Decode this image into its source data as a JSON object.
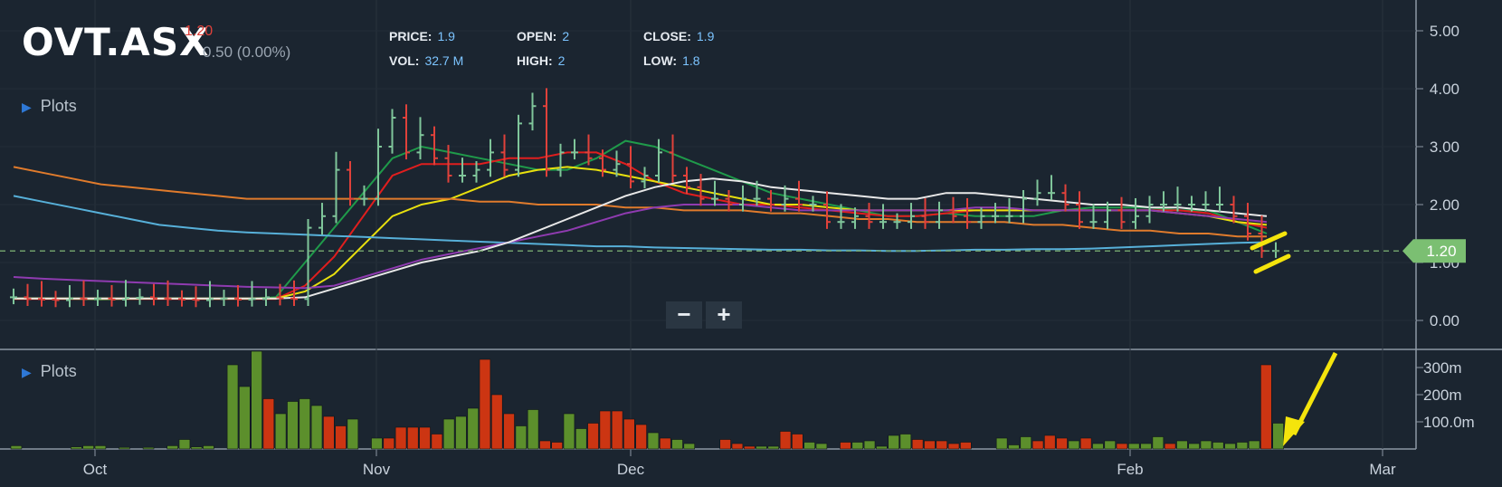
{
  "header": {
    "ticker": "OVT.ASX",
    "last": "1.20",
    "change": "0.50 (0.00%)",
    "fields": [
      {
        "key": "PRICE:",
        "value": "1.9"
      },
      {
        "key": "OPEN:",
        "value": "2"
      },
      {
        "key": "CLOSE:",
        "value": "1.9"
      },
      {
        "key": "VOL:",
        "value": "32.7 M"
      },
      {
        "key": "HIGH:",
        "value": "2"
      },
      {
        "key": "LOW:",
        "value": "1.8"
      }
    ]
  },
  "plots_label_top": "Plots",
  "plots_label_bottom": "Plots",
  "zoom": {
    "minus": "−",
    "plus": "+"
  },
  "price_tag": "1.20",
  "colors": {
    "background": "#1b2530",
    "up": "#5c8f2c",
    "down": "#cc3512",
    "accent_yellow": "#f4e40c",
    "price_tag": "#7bbf72"
  },
  "chart_data": [
    {
      "type": "ohlc",
      "xaxis_ticks": [
        "Oct",
        "Nov",
        "Dec",
        "Feb",
        "Mar"
      ],
      "yaxis_ticks": [
        "0.00",
        "1.00",
        "2.00",
        "3.00",
        "4.00",
        "5.00"
      ],
      "ylim": [
        -0.5,
        5.4
      ],
      "last_price": 1.2,
      "close_series": [
        0.4,
        0.37,
        0.36,
        0.35,
        0.38,
        0.37,
        0.38,
        0.36,
        0.39,
        0.4,
        0.38,
        0.37,
        0.36,
        0.35,
        0.37,
        0.38,
        0.36,
        0.37,
        0.4,
        0.38,
        0.37,
        1.6,
        1.8,
        2.6,
        2.1,
        2.1,
        3.0,
        3.5,
        2.9,
        3.2,
        2.8,
        2.5,
        2.5,
        2.6,
        2.9,
        2.6,
        3.4,
        3.7,
        2.6,
        2.9,
        2.9,
        2.8,
        2.6,
        2.7,
        2.4,
        2.5,
        2.9,
        2.5,
        2.3,
        2.1,
        2.1,
        2.0,
        2.1,
        2.1,
        2.0,
        2.1,
        2.0,
        2.0,
        1.7,
        1.7,
        1.8,
        1.7,
        1.7,
        1.7,
        1.8,
        1.7,
        1.9,
        1.8,
        1.7,
        1.8,
        1.8,
        1.8,
        2.1,
        2.2,
        2.2,
        2.0,
        1.7,
        1.7,
        1.9,
        1.7,
        1.8,
        2.0,
        2.0,
        2.0,
        2.0,
        2.0,
        2.0,
        1.8,
        1.5,
        1.2,
        1.2
      ],
      "series": [
        {
          "name": "",
          "color": "#1f9a4a",
          "values": [
            0.38,
            0.38,
            0.37,
            0.36,
            0.37,
            0.38,
            0.38,
            0.37,
            0.37,
            0.4,
            1.0,
            1.6,
            2.2,
            2.8,
            3.0,
            2.9,
            2.8,
            2.7,
            2.6,
            2.6,
            2.8,
            3.1,
            3.0,
            2.8,
            2.6,
            2.4,
            2.2,
            2.1,
            2.0,
            1.9,
            1.8,
            1.8,
            1.85,
            1.8,
            1.8,
            1.8,
            1.9,
            1.95,
            1.95,
            1.95,
            1.9,
            1.9,
            1.7,
            1.5
          ]
        },
        {
          "name": "",
          "color": "#e01e1e",
          "values": [
            0.37,
            0.37,
            0.37,
            0.37,
            0.37,
            0.37,
            0.37,
            0.37,
            0.37,
            0.37,
            0.6,
            1.1,
            1.8,
            2.5,
            2.7,
            2.7,
            2.7,
            2.8,
            2.8,
            2.9,
            2.9,
            2.7,
            2.4,
            2.2,
            2.1,
            2.0,
            2.0,
            1.95,
            1.9,
            1.85,
            1.8,
            1.8,
            1.85,
            1.9,
            1.9,
            1.9,
            1.9,
            1.9,
            1.9,
            1.9,
            1.9,
            1.85,
            1.7,
            1.6
          ]
        },
        {
          "name": "",
          "color": "#e8e00e",
          "values": [
            0.38,
            0.38,
            0.38,
            0.38,
            0.38,
            0.38,
            0.38,
            0.38,
            0.38,
            0.38,
            0.5,
            0.8,
            1.3,
            1.8,
            2.0,
            2.1,
            2.3,
            2.5,
            2.6,
            2.65,
            2.6,
            2.5,
            2.4,
            2.3,
            2.2,
            2.1,
            2.0,
            2.0,
            1.95,
            1.9,
            1.9,
            1.9,
            1.9,
            1.9,
            1.9,
            1.9,
            1.9,
            1.9,
            1.9,
            1.9,
            1.85,
            1.8,
            1.7,
            1.65
          ]
        },
        {
          "name": "",
          "color": "#e07b2c",
          "values": [
            2.65,
            2.55,
            2.45,
            2.35,
            2.3,
            2.25,
            2.2,
            2.15,
            2.1,
            2.1,
            2.1,
            2.1,
            2.1,
            2.1,
            2.1,
            2.1,
            2.05,
            2.05,
            2.0,
            2.0,
            2.0,
            1.95,
            1.95,
            1.9,
            1.9,
            1.9,
            1.85,
            1.85,
            1.8,
            1.75,
            1.75,
            1.7,
            1.7,
            1.7,
            1.7,
            1.65,
            1.65,
            1.6,
            1.55,
            1.55,
            1.5,
            1.5,
            1.45,
            1.45
          ]
        },
        {
          "name": "",
          "color": "#57b0d9",
          "values": [
            2.15,
            2.05,
            1.95,
            1.85,
            1.75,
            1.65,
            1.6,
            1.55,
            1.52,
            1.5,
            1.48,
            1.46,
            1.44,
            1.42,
            1.4,
            1.38,
            1.36,
            1.34,
            1.32,
            1.3,
            1.28,
            1.28,
            1.26,
            1.25,
            1.24,
            1.23,
            1.22,
            1.22,
            1.21,
            1.21,
            1.2,
            1.2,
            1.21,
            1.22,
            1.22,
            1.23,
            1.23,
            1.24,
            1.26,
            1.28,
            1.3,
            1.32,
            1.34,
            1.35
          ]
        },
        {
          "name": "",
          "color": "#8f3bb0",
          "values": [
            0.75,
            0.72,
            0.7,
            0.68,
            0.66,
            0.64,
            0.62,
            0.6,
            0.58,
            0.57,
            0.56,
            0.6,
            0.75,
            0.9,
            1.05,
            1.15,
            1.25,
            1.35,
            1.45,
            1.55,
            1.7,
            1.85,
            1.95,
            2.0,
            2.0,
            2.0,
            1.95,
            1.9,
            1.9,
            1.9,
            1.9,
            1.9,
            1.9,
            1.95,
            1.95,
            1.9,
            1.9,
            1.9,
            1.9,
            1.9,
            1.85,
            1.8,
            1.75,
            1.7
          ]
        },
        {
          "name": "",
          "color": "#e8e8e8",
          "values": [
            0.38,
            0.38,
            0.38,
            0.38,
            0.38,
            0.38,
            0.38,
            0.38,
            0.38,
            0.38,
            0.4,
            0.55,
            0.7,
            0.85,
            1.0,
            1.1,
            1.2,
            1.35,
            1.55,
            1.75,
            1.95,
            2.15,
            2.3,
            2.4,
            2.45,
            2.4,
            2.3,
            2.25,
            2.2,
            2.15,
            2.1,
            2.1,
            2.2,
            2.2,
            2.15,
            2.1,
            2.05,
            2.0,
            2.0,
            1.95,
            1.95,
            1.9,
            1.85,
            1.8
          ]
        }
      ]
    },
    {
      "type": "bar",
      "xaxis_ticks": [
        "Oct",
        "Nov",
        "Dec",
        "Feb",
        "Mar"
      ],
      "yaxis_ticks": [
        "100.0m",
        "200m",
        "300m"
      ],
      "ylim": [
        0,
        380
      ],
      "volumes": [
        12,
        0,
        0,
        0,
        0,
        8,
        12,
        12,
        0,
        6,
        0,
        6,
        0,
        12,
        35,
        8,
        12,
        0,
        310,
        230,
        390,
        185,
        130,
        175,
        185,
        160,
        120,
        85,
        110,
        0,
        40,
        40,
        80,
        80,
        80,
        55,
        110,
        120,
        150,
        330,
        200,
        130,
        85,
        145,
        30,
        25,
        130,
        75,
        95,
        140,
        140,
        110,
        90,
        60,
        40,
        35,
        20,
        0,
        0,
        35,
        20,
        10,
        10,
        10,
        65,
        55,
        25,
        20,
        0,
        25,
        25,
        30,
        10,
        50,
        55,
        35,
        30,
        30,
        20,
        25,
        0,
        0,
        40,
        15,
        45,
        30,
        50,
        40,
        30,
        40,
        20,
        30,
        20,
        20,
        20,
        45,
        20,
        30,
        20,
        30,
        25,
        20,
        25,
        30,
        310,
        95
      ],
      "up": [
        1,
        1,
        1,
        1,
        1,
        1,
        1,
        1,
        1,
        1,
        1,
        1,
        1,
        1,
        1,
        1,
        1,
        1,
        1,
        1,
        1,
        0,
        1,
        1,
        1,
        1,
        0,
        0,
        1,
        1,
        1,
        0,
        0,
        0,
        0,
        0,
        1,
        1,
        1,
        0,
        0,
        0,
        1,
        1,
        0,
        0,
        1,
        1,
        0,
        0,
        0,
        0,
        0,
        1,
        0,
        1,
        1,
        1,
        1,
        0,
        0,
        0,
        1,
        1,
        0,
        0,
        1,
        1,
        1,
        0,
        1,
        1,
        1,
        1,
        1,
        0,
        0,
        0,
        0,
        0,
        1,
        1,
        1,
        1,
        1,
        0,
        0,
        0,
        1,
        0,
        1,
        1,
        0,
        1,
        1,
        1,
        0,
        1,
        1,
        1,
        1,
        1,
        1,
        1,
        0,
        1
      ]
    }
  ]
}
